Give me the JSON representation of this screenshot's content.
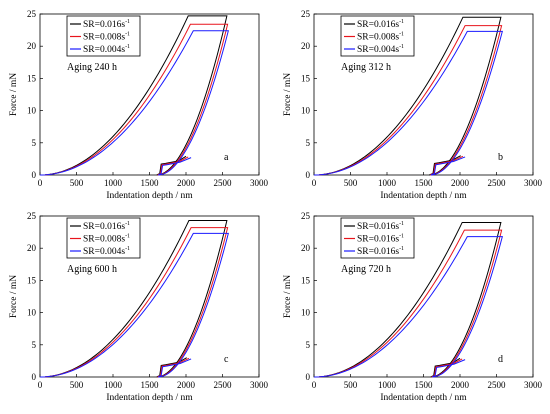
{
  "chart_data": [
    {
      "type": "line",
      "panel_label": "a",
      "annotation": "Aging 240 h",
      "xlabel": "Indentation depth / nm",
      "ylabel": "Force / mN",
      "xlim": [
        0,
        3000
      ],
      "ylim": [
        0,
        25
      ],
      "xticks": [
        "0",
        "500",
        "1000",
        "1500",
        "2000",
        "2500",
        "3000"
      ],
      "yticks": [
        "0",
        "5",
        "10",
        "15",
        "20",
        "25"
      ],
      "legend_position": "top-left",
      "series": [
        {
          "name": "SR=0.016s",
          "sup": "-1",
          "color": "#000000",
          "hmax": 2560,
          "pmax": 24.7,
          "hcreep_start": 2030,
          "hf": 1600,
          "pop_h": 1660,
          "pop_low": 0.25,
          "pop_high": 1.7
        },
        {
          "name": "SR=0.008s",
          "sup": "-1",
          "color": "#e8141c",
          "hmax": 2570,
          "pmax": 23.4,
          "hcreep_start": 2060,
          "hf": 1610,
          "pop_h": 1670,
          "pop_low": 0.25,
          "pop_high": 1.6
        },
        {
          "name": "SR=0.004s",
          "sup": "-1",
          "color": "#1a1aff",
          "hmax": 2580,
          "pmax": 22.4,
          "hcreep_start": 2100,
          "hf": 1620,
          "pop_h": 1680,
          "pop_low": 0.25,
          "pop_high": 1.5
        }
      ]
    },
    {
      "type": "line",
      "panel_label": "b",
      "annotation": "Aging 312 h",
      "xlabel": "Indentation depth / nm",
      "ylabel": "Force / mN",
      "xlim": [
        0,
        3000
      ],
      "ylim": [
        0,
        25
      ],
      "xticks": [
        "0",
        "500",
        "1000",
        "1500",
        "2000",
        "2500",
        "3000"
      ],
      "yticks": [
        "0",
        "5",
        "10",
        "15",
        "20",
        "25"
      ],
      "legend_position": "top-left",
      "series": [
        {
          "name": "SR=0.016s",
          "sup": "-1",
          "color": "#000000",
          "hmax": 2560,
          "pmax": 24.5,
          "hcreep_start": 2040,
          "hf": 1580,
          "pop_h": 1650,
          "pop_low": 0.25,
          "pop_high": 1.8
        },
        {
          "name": "SR=0.008s",
          "sup": "-1",
          "color": "#e8141c",
          "hmax": 2570,
          "pmax": 23.2,
          "hcreep_start": 2070,
          "hf": 1590,
          "pop_h": 1660,
          "pop_low": 0.25,
          "pop_high": 1.7
        },
        {
          "name": "SR=0.004s",
          "sup": "-1",
          "color": "#1a1aff",
          "hmax": 2580,
          "pmax": 22.3,
          "hcreep_start": 2100,
          "hf": 1600,
          "pop_h": 1670,
          "pop_low": 0.25,
          "pop_high": 1.6
        }
      ]
    },
    {
      "type": "line",
      "panel_label": "c",
      "annotation": "Aging 600 h",
      "xlabel": "Indentation depth / nm",
      "ylabel": "Force / mN",
      "xlim": [
        0,
        3000
      ],
      "ylim": [
        0,
        25
      ],
      "xticks": [
        "0",
        "500",
        "1000",
        "1500",
        "2000",
        "2500",
        "3000"
      ],
      "yticks": [
        "0",
        "5",
        "10",
        "15",
        "20",
        "25"
      ],
      "legend_position": "top-left",
      "series": [
        {
          "name": "SR=0.016s",
          "sup": "-1",
          "color": "#000000",
          "hmax": 2560,
          "pmax": 24.3,
          "hcreep_start": 2040,
          "hf": 1600,
          "pop_h": 1660,
          "pop_low": 0.25,
          "pop_high": 1.8
        },
        {
          "name": "SR=0.008s",
          "sup": "-1",
          "color": "#e8141c",
          "hmax": 2570,
          "pmax": 23.2,
          "hcreep_start": 2070,
          "hf": 1610,
          "pop_h": 1670,
          "pop_low": 0.25,
          "pop_high": 1.7
        },
        {
          "name": "SR=0.004s",
          "sup": "-1",
          "color": "#1a1aff",
          "hmax": 2580,
          "pmax": 22.3,
          "hcreep_start": 2100,
          "hf": 1620,
          "pop_h": 1680,
          "pop_low": 0.25,
          "pop_high": 1.6
        }
      ]
    },
    {
      "type": "line",
      "panel_label": "d",
      "annotation": "Aging 720 h",
      "xlabel": "Indentation depth / nm",
      "ylabel": "Force / mN",
      "xlim": [
        0,
        3000
      ],
      "ylim": [
        0,
        25
      ],
      "xticks": [
        "0",
        "500",
        "1000",
        "1500",
        "2000",
        "2500",
        "3000"
      ],
      "yticks": [
        "0",
        "5",
        "10",
        "15",
        "20",
        "25"
      ],
      "legend_position": "top-left",
      "series": [
        {
          "name": "SR=0.016s",
          "sup": "-1",
          "color": "#000000",
          "hmax": 2560,
          "pmax": 24.0,
          "hcreep_start": 2030,
          "hf": 1600,
          "pop_h": 1660,
          "pop_low": 0.25,
          "pop_high": 1.7
        },
        {
          "name": "SR=0.016s",
          "sup": "-1",
          "color": "#e8141c",
          "hmax": 2570,
          "pmax": 22.8,
          "hcreep_start": 2060,
          "hf": 1610,
          "pop_h": 1670,
          "pop_low": 0.25,
          "pop_high": 1.6
        },
        {
          "name": "SR=0.016s",
          "sup": "-1",
          "color": "#1a1aff",
          "hmax": 2580,
          "pmax": 21.8,
          "hcreep_start": 2100,
          "hf": 1620,
          "pop_h": 1680,
          "pop_low": 0.25,
          "pop_high": 1.5
        }
      ]
    }
  ]
}
